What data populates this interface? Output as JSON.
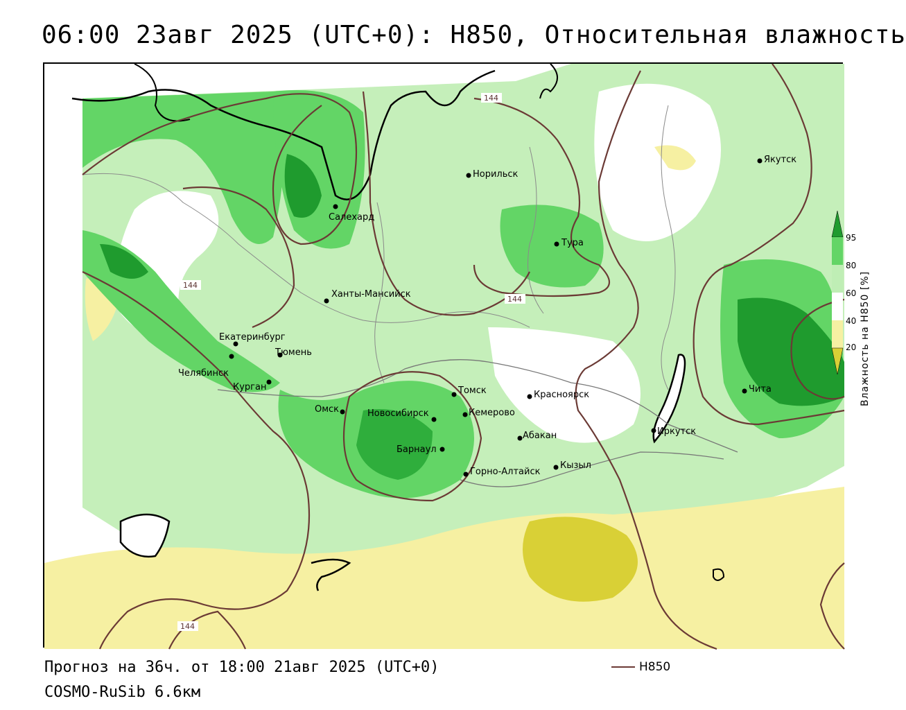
{
  "title": "06:00 23авг 2025 (UTC+0): H850, Относительная влажность",
  "map": {
    "cities": [
      {
        "name": "Якутск"
      },
      {
        "name": "Норильск"
      },
      {
        "name": "Салехард"
      },
      {
        "name": "Тура"
      },
      {
        "name": "Ханты-Мансийск"
      },
      {
        "name": "Екатеринбург"
      },
      {
        "name": "Тюмень"
      },
      {
        "name": "Челябинск"
      },
      {
        "name": "Курган"
      },
      {
        "name": "Омск"
      },
      {
        "name": "Новосибирск"
      },
      {
        "name": "Томск"
      },
      {
        "name": "Кемерово"
      },
      {
        "name": "Красноярск"
      },
      {
        "name": "Барнаул"
      },
      {
        "name": "Абакан"
      },
      {
        "name": "Горно-Алтайск"
      },
      {
        "name": "Кызыл"
      },
      {
        "name": "Иркутск"
      },
      {
        "name": "Чита"
      }
    ],
    "contour_labels": [
      "144",
      "144",
      "144",
      "144"
    ],
    "colors": {
      "dry_20": "#d9d036",
      "dry_40": "#f6f0a2",
      "mid_60": "#ffffff",
      "moist_80": "#bfeeb5",
      "moist_95": "#63d566",
      "saturated": "#1f9b2e",
      "contour": "#6b3a35"
    }
  },
  "colorbar": {
    "title": "Влажность на H850 [%]",
    "ticks": [
      "95",
      "80",
      "60",
      "40",
      "20"
    ]
  },
  "footer": {
    "forecast": "Прогноз на 36ч. от 18:00 21авг 2025 (UTC+0)",
    "model": "COSMO-RuSib 6.6км"
  },
  "legend": {
    "label": "H850"
  }
}
